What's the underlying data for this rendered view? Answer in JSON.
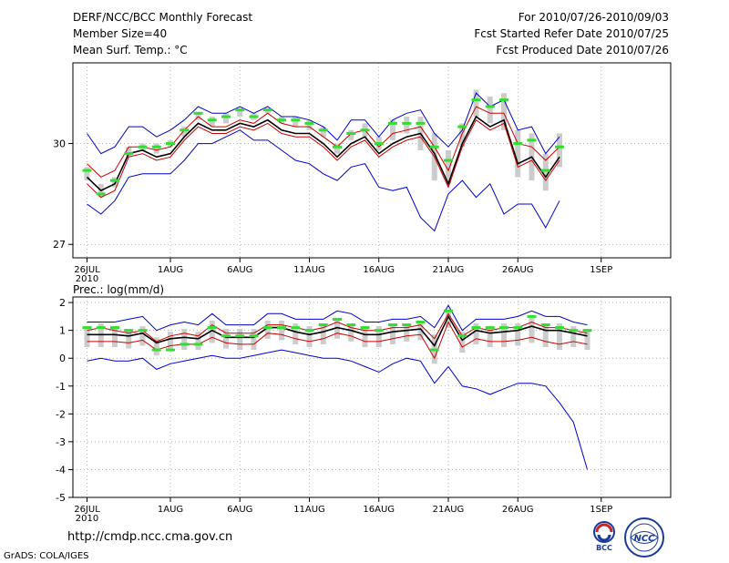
{
  "header": {
    "title": "DERF/NCC/BCC Monthly Forecast",
    "member_size": "Member Size=40",
    "variable": "Mean Surf. Temp.: °C",
    "period": "For 2010/07/26-2010/09/03",
    "refer_date": "Fcst Started Refer Date 2010/07/25",
    "produced_date": "Fcst Produced Date 2010/07/26"
  },
  "footer": {
    "url": "http://cmdp.ncc.cma.gov.cn",
    "credit": "GrADS: COLA/IGES",
    "logo_bcc": "BCC",
    "logo_ncc": "NCC"
  },
  "chart_data": [
    {
      "type": "line",
      "title": "Mean Surf. Temp.: °C",
      "ylim": [
        26.6,
        32.4
      ],
      "yticks": [
        "27",
        "30"
      ],
      "ytick_values": [
        27,
        30
      ],
      "xlabels": [
        "26JUL",
        "1AUG",
        "6AUG",
        "11AUG",
        "16AUG",
        "21AUG",
        "26AUG",
        "1SEP"
      ],
      "xlabel_days": [
        0,
        6,
        11,
        16,
        21,
        26,
        31,
        37
      ],
      "year_label": "2010",
      "series": [
        {
          "name": "max",
          "color": "#0000cc",
          "values": [
            30.3,
            29.7,
            29.9,
            30.5,
            30.5,
            30.2,
            30.4,
            30.7,
            31.1,
            30.9,
            30.9,
            31.1,
            30.9,
            31.1,
            30.8,
            30.8,
            30.7,
            30.5,
            30.1,
            30.7,
            30.7,
            30.2,
            30.7,
            30.9,
            31.0,
            30.3,
            29.9,
            30.4,
            31.5,
            31.1,
            31.3,
            30.4,
            30.5,
            29.7,
            30.2
          ]
        },
        {
          "name": "upper",
          "color": "#cc0000",
          "values": [
            29.4,
            29.0,
            29.2,
            29.9,
            29.9,
            29.8,
            29.9,
            30.4,
            30.8,
            30.5,
            30.5,
            30.7,
            30.6,
            30.9,
            30.6,
            30.5,
            30.5,
            30.2,
            29.9,
            30.3,
            30.4,
            29.9,
            30.3,
            30.4,
            30.5,
            29.9,
            29.2,
            30.3,
            31.1,
            30.9,
            30.9,
            30.0,
            29.9,
            29.5,
            29.9
          ]
        },
        {
          "name": "median",
          "color": "#000000",
          "values": [
            29.0,
            28.6,
            28.8,
            29.7,
            29.8,
            29.6,
            29.7,
            30.2,
            30.6,
            30.4,
            30.4,
            30.6,
            30.5,
            30.7,
            30.4,
            30.3,
            30.3,
            30.0,
            29.6,
            30.0,
            30.2,
            29.7,
            30.0,
            30.2,
            30.3,
            29.7,
            28.8,
            30.0,
            30.8,
            30.5,
            30.7,
            29.4,
            29.6,
            29.0,
            29.6
          ]
        },
        {
          "name": "lower",
          "color": "#cc0000",
          "values": [
            28.8,
            28.4,
            28.6,
            29.6,
            29.7,
            29.5,
            29.6,
            30.1,
            30.5,
            30.3,
            30.3,
            30.5,
            30.4,
            30.6,
            30.3,
            30.2,
            30.2,
            29.9,
            29.5,
            29.9,
            30.1,
            29.6,
            29.9,
            30.1,
            30.2,
            29.6,
            28.7,
            29.9,
            30.7,
            30.4,
            30.6,
            29.3,
            29.5,
            28.9,
            29.5
          ]
        },
        {
          "name": "min",
          "color": "#0000cc",
          "values": [
            28.2,
            27.9,
            28.3,
            29.0,
            29.1,
            29.1,
            29.1,
            29.5,
            30.0,
            30.0,
            30.2,
            30.4,
            30.1,
            30.1,
            29.8,
            29.5,
            29.4,
            29.1,
            28.9,
            29.3,
            29.4,
            28.7,
            28.6,
            28.7,
            27.8,
            27.4,
            28.5,
            28.9,
            28.4,
            28.8,
            27.9,
            28.2,
            28.2,
            27.5,
            28.3
          ]
        }
      ],
      "median_mark": [
        29.2,
        28.5,
        28.9,
        29.7,
        29.9,
        29.9,
        30.0,
        30.4,
        30.9,
        30.7,
        30.8,
        31.0,
        30.8,
        31.0,
        30.7,
        30.7,
        30.6,
        30.4,
        29.9,
        30.3,
        30.4,
        30.0,
        30.6,
        30.6,
        30.6,
        29.9,
        29.5,
        30.5,
        31.3,
        31.1,
        31.3,
        30.0,
        30.1,
        29.2,
        29.9
      ],
      "bar_low": [
        28.9,
        28.4,
        28.7,
        29.6,
        29.8,
        29.7,
        29.9,
        30.2,
        30.7,
        30.5,
        30.6,
        30.8,
        30.7,
        30.9,
        30.6,
        30.5,
        30.4,
        30.2,
        29.7,
        30.1,
        30.2,
        29.8,
        30.1,
        30.3,
        29.8,
        28.9,
        28.8,
        29.9,
        30.8,
        30.6,
        30.4,
        29.0,
        28.9,
        28.6,
        29.3
      ],
      "bar_high": [
        29.3,
        28.8,
        29.0,
        29.9,
        30.0,
        30.0,
        30.1,
        30.5,
        30.9,
        30.8,
        30.9,
        31.0,
        30.9,
        31.0,
        30.8,
        30.8,
        30.7,
        30.5,
        30.0,
        30.4,
        30.6,
        30.2,
        30.7,
        30.8,
        30.8,
        30.3,
        29.8,
        30.6,
        31.6,
        31.4,
        31.5,
        30.4,
        30.3,
        29.7,
        30.3
      ]
    },
    {
      "type": "line",
      "title": "Prec.: log(mm/d)",
      "ylim": [
        -5,
        2.2
      ],
      "yticks": [
        "2",
        "1",
        "0",
        "-1",
        "-2",
        "-3",
        "-4",
        "-5"
      ],
      "ytick_values": [
        2,
        1,
        0,
        -1,
        -2,
        -3,
        -4,
        -5
      ],
      "xlabels": [
        "26JUL",
        "1AUG",
        "6AUG",
        "11AUG",
        "16AUG",
        "21AUG",
        "26AUG",
        "1SEP"
      ],
      "xlabel_days": [
        0,
        6,
        11,
        16,
        21,
        26,
        31,
        37
      ],
      "year_label": "2010",
      "series": [
        {
          "name": "max",
          "color": "#0000cc",
          "values": [
            1.3,
            1.3,
            1.3,
            1.4,
            1.5,
            1.0,
            1.2,
            1.3,
            1.2,
            1.6,
            1.2,
            1.2,
            1.2,
            1.6,
            1.6,
            1.4,
            1.4,
            1.4,
            1.7,
            1.6,
            1.3,
            1.3,
            1.4,
            1.4,
            1.5,
            1.1,
            1.9,
            1.0,
            1.4,
            1.4,
            1.4,
            1.5,
            1.7,
            1.5,
            1.5,
            1.3,
            1.2
          ]
        },
        {
          "name": "upper",
          "color": "#cc0000",
          "values": [
            1.0,
            1.1,
            1.0,
            0.9,
            1.0,
            0.6,
            0.8,
            0.9,
            0.8,
            1.2,
            0.9,
            0.9,
            0.9,
            1.2,
            1.2,
            1.1,
            1.0,
            1.1,
            1.3,
            1.1,
            1.0,
            1.0,
            1.1,
            1.1,
            1.2,
            0.7,
            1.6,
            0.8,
            1.1,
            1.0,
            1.1,
            1.1,
            1.3,
            1.1,
            1.1,
            1.0,
            0.9
          ]
        },
        {
          "name": "median",
          "color": "#000000",
          "values": [
            0.85,
            0.85,
            0.85,
            0.8,
            0.9,
            0.55,
            0.7,
            0.75,
            0.7,
            1.0,
            0.75,
            0.75,
            0.75,
            1.1,
            1.1,
            0.95,
            0.85,
            0.95,
            1.1,
            1.0,
            0.85,
            0.85,
            0.95,
            1.0,
            1.05,
            0.45,
            1.5,
            0.65,
            1.0,
            0.9,
            0.95,
            1.0,
            1.15,
            1.0,
            1.0,
            0.9,
            0.8
          ]
        },
        {
          "name": "lower",
          "color": "#cc0000",
          "values": [
            0.6,
            0.6,
            0.6,
            0.55,
            0.65,
            0.3,
            0.45,
            0.5,
            0.5,
            0.75,
            0.55,
            0.5,
            0.5,
            0.9,
            0.85,
            0.7,
            0.6,
            0.7,
            0.9,
            0.8,
            0.6,
            0.6,
            0.7,
            0.8,
            0.85,
            0.0,
            1.3,
            0.4,
            0.7,
            0.6,
            0.6,
            0.65,
            0.75,
            0.6,
            0.5,
            0.6,
            0.5
          ]
        },
        {
          "name": "min",
          "color": "#0000cc",
          "values": [
            -0.1,
            0.0,
            -0.1,
            -0.1,
            0.0,
            -0.4,
            -0.2,
            -0.1,
            0.0,
            0.1,
            0.0,
            0.0,
            0.1,
            0.2,
            0.3,
            0.2,
            0.1,
            0.0,
            0.0,
            -0.1,
            -0.3,
            -0.5,
            -0.2,
            0.0,
            -0.1,
            -0.9,
            -0.3,
            -1.0,
            -1.1,
            -1.3,
            -1.1,
            -0.9,
            -0.9,
            -1.0,
            -1.6,
            -2.3,
            -4.0
          ]
        }
      ],
      "median_mark": [
        1.1,
        1.1,
        1.1,
        1.0,
        1.0,
        0.3,
        0.3,
        0.5,
        0.5,
        1.1,
        0.8,
        0.8,
        0.8,
        1.1,
        1.1,
        1.1,
        1.0,
        1.2,
        1.4,
        1.2,
        1.1,
        1.0,
        1.2,
        1.2,
        1.3,
        0.3,
        1.7,
        0.8,
        1.1,
        1.1,
        1.1,
        1.1,
        1.5,
        1.2,
        1.1,
        1.0,
        1.0
      ]
    }
  ]
}
